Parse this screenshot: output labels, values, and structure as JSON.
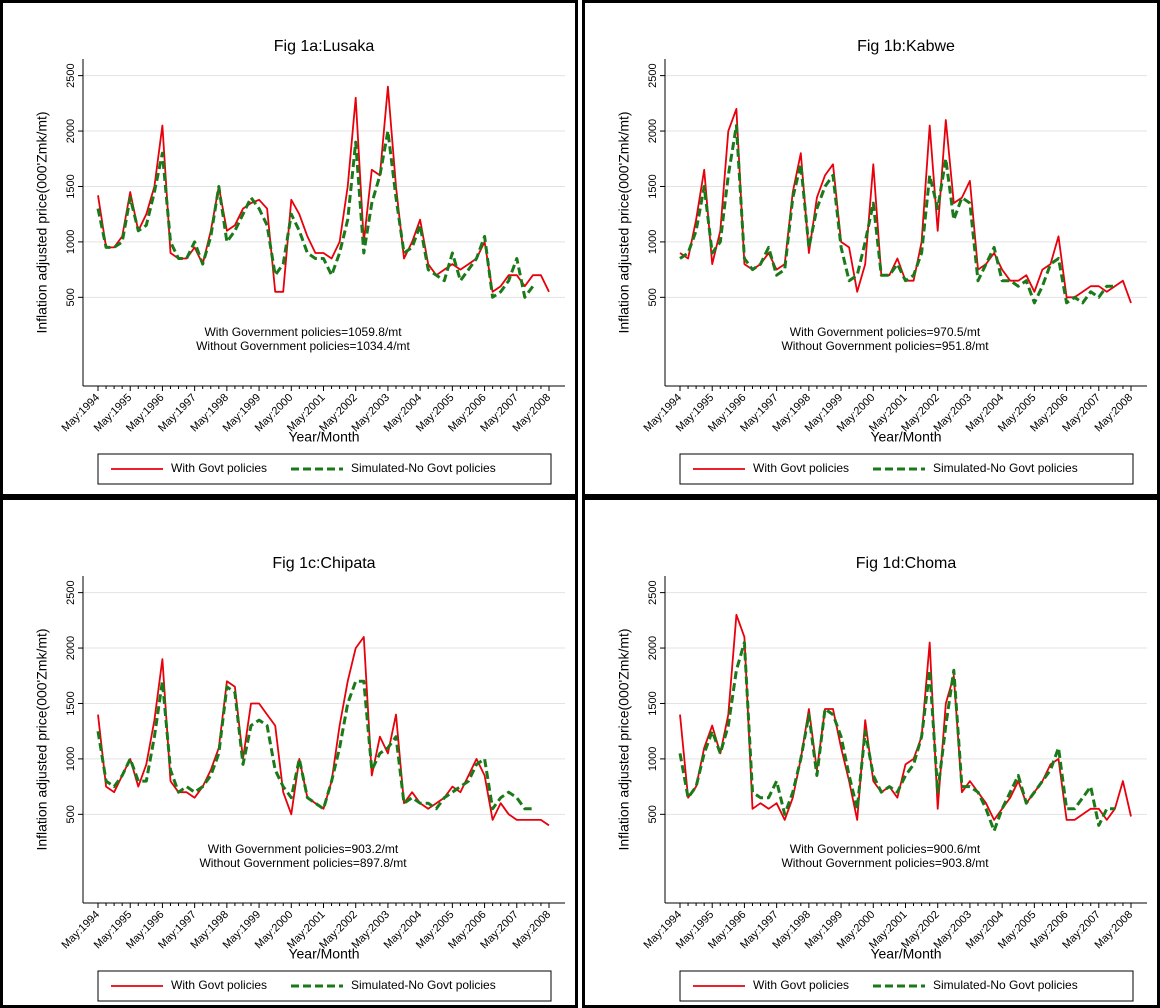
{
  "chart_data": [
    {
      "type": "line",
      "title": "Fig 1a:Lusaka",
      "x_label": "Year/Month",
      "y_label": "Inflation adjusted price(000'Zmk/mt)",
      "categories": [
        "May:1994",
        null,
        null,
        null,
        "May:1995",
        null,
        null,
        null,
        "May:1996",
        null,
        null,
        null,
        "May:1997",
        null,
        null,
        null,
        "May:1998",
        null,
        null,
        null,
        "May:1999",
        null,
        null,
        null,
        "May:2000",
        null,
        null,
        null,
        "May:2001",
        null,
        null,
        null,
        "May:2002",
        null,
        null,
        null,
        "May:2003",
        null,
        null,
        null,
        "May:2004",
        null,
        null,
        null,
        "May:2005",
        null,
        null,
        null,
        "May:2006",
        null,
        null,
        null,
        "May:2007",
        null,
        null,
        null,
        "May:2008"
      ],
      "ylim": [
        -300,
        2650
      ],
      "yticks": [
        500,
        1000,
        1500,
        2000,
        2500
      ],
      "grid": true,
      "annotations": [
        "With Government policies=1059.8/mt",
        "Without Government policies=1034.4/mt"
      ],
      "series": [
        {
          "name": "With Govt policies",
          "color": "#e8000b",
          "style": "solid",
          "values": [
            1420,
            950,
            950,
            1050,
            1450,
            1100,
            1250,
            1500,
            2050,
            900,
            850,
            850,
            950,
            800,
            1100,
            1500,
            1100,
            1150,
            1300,
            1350,
            1380,
            1300,
            550,
            550,
            1380,
            1250,
            1050,
            900,
            900,
            850,
            1000,
            1500,
            2300,
            1000,
            1650,
            1600,
            2400,
            1500,
            850,
            1000,
            1200,
            800,
            700,
            750,
            800,
            750,
            800,
            850,
            1000,
            550,
            600,
            700,
            700,
            600,
            700,
            700,
            550
          ]
        },
        {
          "name": "Simulated-No Govt policies",
          "color": "#1a7a1a",
          "style": "dashed",
          "values": [
            1300,
            950,
            950,
            1000,
            1400,
            1100,
            1150,
            1450,
            1800,
            1000,
            850,
            850,
            1000,
            800,
            1050,
            1500,
            1000,
            1100,
            1250,
            1400,
            1300,
            1150,
            700,
            800,
            1250,
            1100,
            900,
            850,
            850,
            700,
            900,
            1200,
            1900,
            900,
            1350,
            1600,
            2000,
            1400,
            900,
            950,
            1150,
            750,
            700,
            650,
            900,
            650,
            750,
            850,
            1050,
            500,
            550,
            650,
            850,
            500,
            600,
            null,
            null
          ]
        }
      ]
    },
    {
      "type": "line",
      "title": "Fig 1b:Kabwe",
      "x_label": "Year/Month",
      "y_label": "Inflation adjusted price(000'Zmk/mt)",
      "categories": [
        "May:1994",
        null,
        null,
        null,
        "May:1995",
        null,
        null,
        null,
        "May:1996",
        null,
        null,
        null,
        "May:1997",
        null,
        null,
        null,
        "May:1998",
        null,
        null,
        null,
        "May:1999",
        null,
        null,
        null,
        "May:2000",
        null,
        null,
        null,
        "May:2001",
        null,
        null,
        null,
        "May:2002",
        null,
        null,
        null,
        "May:2003",
        null,
        null,
        null,
        "May:2004",
        null,
        null,
        null,
        "May:2005",
        null,
        null,
        null,
        "May:2006",
        null,
        null,
        null,
        "May:2007",
        null,
        null,
        null,
        "May:2008"
      ],
      "ylim": [
        -300,
        2650
      ],
      "yticks": [
        500,
        1000,
        1500,
        2000,
        2500
      ],
      "grid": true,
      "annotations": [
        "With Government policies=970.5/mt",
        "Without Government policies=951.8/mt"
      ],
      "series": [
        {
          "name": "With Govt policies",
          "color": "#e8000b",
          "style": "solid",
          "values": [
            900,
            850,
            1200,
            1650,
            800,
            1100,
            2000,
            2200,
            800,
            750,
            800,
            900,
            750,
            800,
            1450,
            1800,
            900,
            1400,
            1600,
            1700,
            1000,
            950,
            550,
            800,
            1700,
            700,
            700,
            850,
            650,
            650,
            1000,
            2050,
            1100,
            2100,
            1350,
            1400,
            1550,
            750,
            800,
            900,
            750,
            650,
            650,
            700,
            550,
            750,
            800,
            1050,
            500,
            500,
            550,
            600,
            600,
            550,
            600,
            650,
            450
          ]
        },
        {
          "name": "Simulated-No Govt policies",
          "color": "#1a7a1a",
          "style": "dashed",
          "values": [
            850,
            900,
            1100,
            1500,
            900,
            1000,
            1600,
            2050,
            850,
            750,
            800,
            950,
            700,
            750,
            1400,
            1700,
            950,
            1300,
            1500,
            1600,
            950,
            650,
            700,
            1000,
            1350,
            700,
            700,
            800,
            650,
            700,
            900,
            1600,
            1300,
            1750,
            1200,
            1400,
            1350,
            650,
            800,
            950,
            650,
            650,
            600,
            650,
            450,
            600,
            800,
            850,
            450,
            500,
            450,
            550,
            500,
            600,
            600,
            null,
            null
          ]
        }
      ]
    },
    {
      "type": "line",
      "title": "Fig 1c:Chipata",
      "x_label": "Year/Month",
      "y_label": "Inflation adjusted price(000'Zmk/mt)",
      "categories": [
        "May:1994",
        null,
        null,
        null,
        "May:1995",
        null,
        null,
        null,
        "May:1996",
        null,
        null,
        null,
        "May:1997",
        null,
        null,
        null,
        "May:1998",
        null,
        null,
        null,
        "May:1999",
        null,
        null,
        null,
        "May:2000",
        null,
        null,
        null,
        "May:2001",
        null,
        null,
        null,
        "May:2002",
        null,
        null,
        null,
        "May:2003",
        null,
        null,
        null,
        "May:2004",
        null,
        null,
        null,
        "May:2005",
        null,
        null,
        null,
        "May:2006",
        null,
        null,
        null,
        "May:2007",
        null,
        null,
        null,
        "May:2008"
      ],
      "ylim": [
        -300,
        2650
      ],
      "yticks": [
        500,
        1000,
        1500,
        2000,
        2500
      ],
      "grid": true,
      "annotations": [
        "With Government policies=903.2/mt",
        "Without Government policies=897.8/mt"
      ],
      "series": [
        {
          "name": "With Govt policies",
          "color": "#e8000b",
          "style": "solid",
          "values": [
            1400,
            750,
            700,
            850,
            1000,
            750,
            950,
            1350,
            1900,
            800,
            700,
            700,
            650,
            750,
            900,
            1100,
            1700,
            1650,
            1000,
            1500,
            1500,
            1400,
            1300,
            700,
            500,
            1000,
            650,
            600,
            550,
            800,
            1300,
            1700,
            2000,
            2100,
            850,
            1200,
            1050,
            1400,
            600,
            700,
            600,
            550,
            600,
            650,
            750,
            700,
            850,
            1000,
            850,
            450,
            600,
            500,
            450,
            450,
            450,
            450,
            400
          ]
        },
        {
          "name": "Simulated-No Govt policies",
          "color": "#1a7a1a",
          "style": "dashed",
          "values": [
            1250,
            800,
            750,
            850,
            1000,
            800,
            800,
            1200,
            1700,
            900,
            700,
            750,
            700,
            750,
            850,
            1050,
            1650,
            1600,
            950,
            1300,
            1350,
            1300,
            900,
            750,
            650,
            1000,
            650,
            600,
            550,
            800,
            1100,
            1500,
            1700,
            1700,
            900,
            1050,
            1100,
            1200,
            600,
            650,
            600,
            600,
            550,
            650,
            700,
            750,
            800,
            950,
            1000,
            550,
            650,
            700,
            650,
            550,
            550,
            null,
            null
          ]
        }
      ]
    },
    {
      "type": "line",
      "title": "Fig 1d:Choma",
      "x_label": "Year/Month",
      "y_label": "Inflation adjusted price(000'Zmk/mt)",
      "categories": [
        "May:1994",
        null,
        null,
        null,
        "May:1995",
        null,
        null,
        null,
        "May:1996",
        null,
        null,
        null,
        "May:1997",
        null,
        null,
        null,
        "May:1998",
        null,
        null,
        null,
        "May:1999",
        null,
        null,
        null,
        "May:2000",
        null,
        null,
        null,
        "May:2001",
        null,
        null,
        null,
        "May:2002",
        null,
        null,
        null,
        "May:2003",
        null,
        null,
        null,
        "May:2004",
        null,
        null,
        null,
        "May:2005",
        null,
        null,
        null,
        "May:2006",
        null,
        null,
        null,
        "May:2007",
        null,
        null,
        null,
        "May:2008"
      ],
      "ylim": [
        -300,
        2650
      ],
      "yticks": [
        500,
        1000,
        1500,
        2000,
        2500
      ],
      "grid": true,
      "annotations": [
        "With Government policies=900.6/mt",
        "Without Government policies=903.8/mt"
      ],
      "series": [
        {
          "name": "With Govt policies",
          "color": "#e8000b",
          "style": "solid",
          "values": [
            1400,
            650,
            750,
            1100,
            1300,
            1050,
            1400,
            2300,
            2100,
            550,
            600,
            550,
            600,
            450,
            650,
            1000,
            1450,
            900,
            1450,
            1450,
            1100,
            800,
            450,
            1350,
            800,
            700,
            750,
            650,
            950,
            1000,
            1200,
            2050,
            550,
            1500,
            1750,
            700,
            800,
            700,
            600,
            450,
            550,
            650,
            800,
            600,
            700,
            800,
            950,
            1000,
            450,
            450,
            500,
            550,
            550,
            450,
            550,
            800,
            480
          ]
        },
        {
          "name": "Simulated-No Govt policies",
          "color": "#1a7a1a",
          "style": "dashed",
          "values": [
            1050,
            650,
            750,
            1050,
            1250,
            1050,
            1300,
            1800,
            2050,
            700,
            650,
            650,
            800,
            500,
            700,
            1000,
            1400,
            850,
            1450,
            1400,
            1200,
            850,
            550,
            1250,
            850,
            700,
            750,
            700,
            850,
            950,
            1200,
            1800,
            700,
            1300,
            1800,
            750,
            750,
            700,
            550,
            350,
            550,
            700,
            850,
            600,
            700,
            800,
            900,
            1100,
            550,
            550,
            650,
            750,
            400,
            550,
            550,
            null,
            null
          ]
        }
      ]
    }
  ]
}
